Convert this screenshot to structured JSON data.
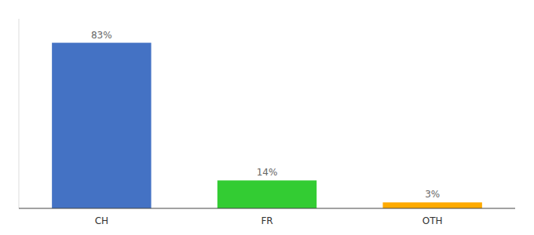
{
  "chart_data": {
    "type": "bar",
    "categories": [
      "CH",
      "FR",
      "OTH"
    ],
    "values": [
      83,
      14,
      3
    ],
    "colors": [
      "#4472c4",
      "#33cc33",
      "#ffaa00"
    ],
    "ylim": [
      0,
      95
    ],
    "data_labels": true,
    "value_labels": [
      "83%",
      "14%",
      "3%"
    ],
    "tick_labels": "x",
    "grid": false
  }
}
